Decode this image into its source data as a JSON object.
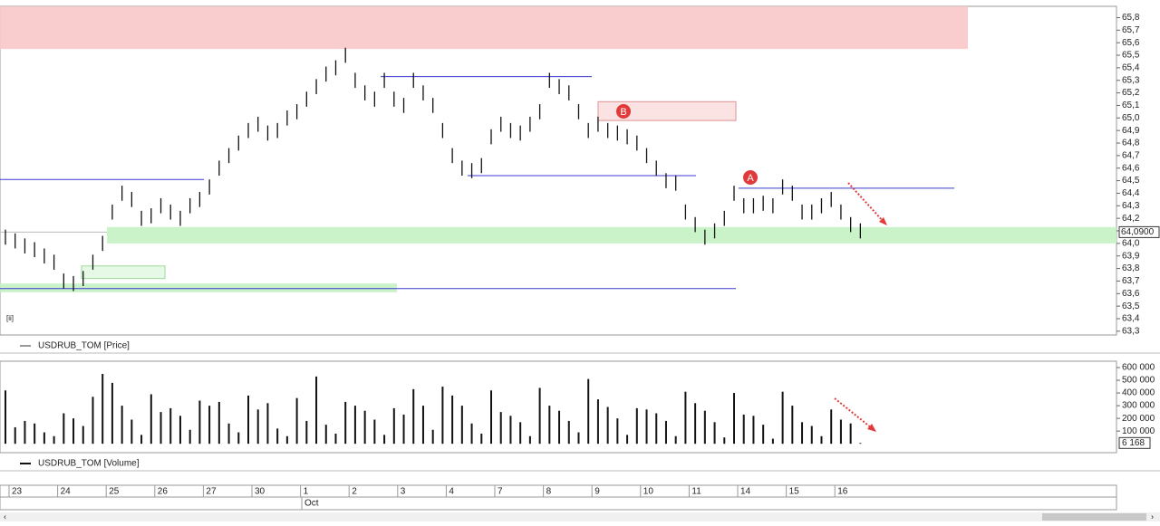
{
  "chart_data": {
    "type": "ohlc",
    "legend_price": "USDRUB_TOM [Price]",
    "legend_volume": "USDRUB_TOM [Volume]",
    "corner_label": "[ii]",
    "month_label": "Oct",
    "days": [
      "23",
      "24",
      "25",
      "26",
      "27",
      "30",
      "1",
      "2",
      "3",
      "4",
      "7",
      "8",
      "9",
      "10",
      "11",
      "14",
      "15",
      "16"
    ],
    "annotations": [
      "A",
      "B"
    ],
    "price": {
      "ylim": [
        63.27,
        65.89
      ],
      "yticks": [
        {
          "value": 65.8,
          "label": "65,8"
        },
        {
          "value": 65.7,
          "label": "65,7"
        },
        {
          "value": 65.6,
          "label": "65,6"
        },
        {
          "value": 65.5,
          "label": "65,5"
        },
        {
          "value": 65.4,
          "label": "65,4"
        },
        {
          "value": 65.3,
          "label": "65,3"
        },
        {
          "value": 65.2,
          "label": "65,2"
        },
        {
          "value": 65.1,
          "label": "65,1"
        },
        {
          "value": 65.0,
          "label": "65,0"
        },
        {
          "value": 64.9,
          "label": "64,9"
        },
        {
          "value": 64.8,
          "label": "64,8"
        },
        {
          "value": 64.7,
          "label": "64,7"
        },
        {
          "value": 64.6,
          "label": "64,6"
        },
        {
          "value": 64.5,
          "label": "64,5"
        },
        {
          "value": 64.4,
          "label": "64,4"
        },
        {
          "value": 64.3,
          "label": "64,3"
        },
        {
          "value": 64.2,
          "label": "64,2"
        },
        {
          "value": 64.1,
          "label": "64,1"
        },
        {
          "value": 64.0,
          "label": "64,0"
        },
        {
          "value": 63.9,
          "label": "63,9"
        },
        {
          "value": 63.8,
          "label": "63,8"
        },
        {
          "value": 63.7,
          "label": "63,7"
        },
        {
          "value": 63.6,
          "label": "63,6"
        },
        {
          "value": 63.5,
          "label": "63,5"
        },
        {
          "value": 63.4,
          "label": "63,4"
        },
        {
          "value": 63.3,
          "label": "63,3"
        }
      ],
      "current": {
        "value": 64.09,
        "label": "64,0900"
      },
      "color": "#111111",
      "high": [
        64.11,
        64.08,
        64.04,
        64.01,
        63.96,
        63.91,
        63.76,
        63.74,
        63.78,
        63.91,
        64.06,
        64.31,
        64.46,
        64.41,
        64.26,
        64.28,
        64.36,
        64.31,
        64.26,
        64.36,
        64.41,
        64.51,
        64.66,
        64.76,
        64.86,
        64.96,
        65.01,
        64.94,
        64.96,
        65.06,
        65.11,
        65.21,
        65.31,
        65.41,
        65.46,
        65.56,
        65.36,
        65.26,
        65.21,
        65.36,
        65.21,
        65.16,
        65.36,
        65.26,
        65.16,
        64.96,
        64.76,
        64.66,
        64.64,
        64.68,
        64.91,
        65.01,
        64.96,
        64.94,
        65.01,
        65.11,
        65.36,
        65.31,
        65.26,
        65.11,
        64.96,
        65.01,
        64.96,
        64.94,
        64.91,
        64.86,
        64.76,
        64.66,
        64.56,
        64.54,
        64.31,
        64.21,
        64.11,
        64.16,
        64.26,
        64.46,
        64.36,
        64.36,
        64.38,
        64.36,
        64.51,
        64.46,
        64.31,
        64.31,
        64.36,
        64.41,
        64.31,
        64.21,
        64.16
      ],
      "low": [
        63.99,
        63.96,
        63.92,
        63.89,
        63.84,
        63.79,
        63.64,
        63.62,
        63.66,
        63.79,
        63.94,
        64.19,
        64.34,
        64.29,
        64.14,
        64.16,
        64.24,
        64.19,
        64.14,
        64.24,
        64.29,
        64.39,
        64.54,
        64.64,
        64.74,
        64.84,
        64.89,
        64.82,
        64.84,
        64.94,
        64.99,
        65.09,
        65.19,
        65.29,
        65.34,
        65.44,
        65.24,
        65.14,
        65.09,
        65.24,
        65.09,
        65.04,
        65.24,
        65.14,
        65.04,
        64.84,
        64.64,
        64.54,
        64.52,
        64.56,
        64.79,
        64.89,
        64.84,
        64.82,
        64.89,
        64.99,
        65.24,
        65.19,
        65.14,
        64.99,
        64.84,
        64.89,
        64.84,
        64.82,
        64.79,
        64.74,
        64.64,
        64.54,
        64.44,
        64.42,
        64.19,
        64.09,
        63.99,
        64.04,
        64.14,
        64.34,
        64.24,
        64.24,
        64.26,
        64.24,
        64.39,
        64.34,
        64.19,
        64.19,
        64.24,
        64.29,
        64.19,
        64.09,
        64.04
      ],
      "zones": [
        {
          "low": 65.55,
          "high": 65.89,
          "color": "#f8c8c8"
        },
        {
          "low": 64.98,
          "high": 65.13,
          "color": "#fbe0e0"
        },
        {
          "low": 64.0,
          "high": 64.13,
          "color": "#c4f2c4"
        },
        {
          "low": 63.72,
          "high": 63.82,
          "color": "#e3f8e3"
        },
        {
          "low": 63.61,
          "high": 63.68,
          "color": "#c4f2c4"
        }
      ],
      "levels": [
        64.51,
        65.33,
        64.54,
        64.44,
        63.64
      ],
      "level_color": "#3a3ad0"
    },
    "volume": {
      "ylim": [
        -70000,
        650000
      ],
      "yticks": [
        {
          "value": 600000,
          "label": "600 000"
        },
        {
          "value": 500000,
          "label": "500 000"
        },
        {
          "value": 400000,
          "label": "400 000"
        },
        {
          "value": 300000,
          "label": "300 000"
        },
        {
          "value": 200000,
          "label": "200 000"
        },
        {
          "value": 100000,
          "label": "100 000"
        }
      ],
      "current": {
        "value": 6168,
        "label": "6 168"
      },
      "values": [
        420000,
        130000,
        180000,
        160000,
        90000,
        60000,
        240000,
        200000,
        140000,
        370000,
        550000,
        480000,
        300000,
        190000,
        70000,
        390000,
        250000,
        280000,
        220000,
        110000,
        340000,
        300000,
        330000,
        160000,
        90000,
        380000,
        270000,
        320000,
        120000,
        60000,
        360000,
        180000,
        530000,
        150000,
        80000,
        330000,
        300000,
        260000,
        190000,
        70000,
        280000,
        230000,
        430000,
        300000,
        110000,
        450000,
        380000,
        300000,
        160000,
        80000,
        420000,
        250000,
        220000,
        170000,
        60000,
        440000,
        300000,
        260000,
        180000,
        90000,
        510000,
        350000,
        290000,
        200000,
        70000,
        280000,
        270000,
        240000,
        180000,
        60000,
        410000,
        320000,
        260000,
        170000,
        50000,
        400000,
        230000,
        220000,
        150000,
        40000,
        410000,
        300000,
        170000,
        140000,
        60000,
        270000,
        190000,
        160000,
        6168
      ]
    }
  }
}
